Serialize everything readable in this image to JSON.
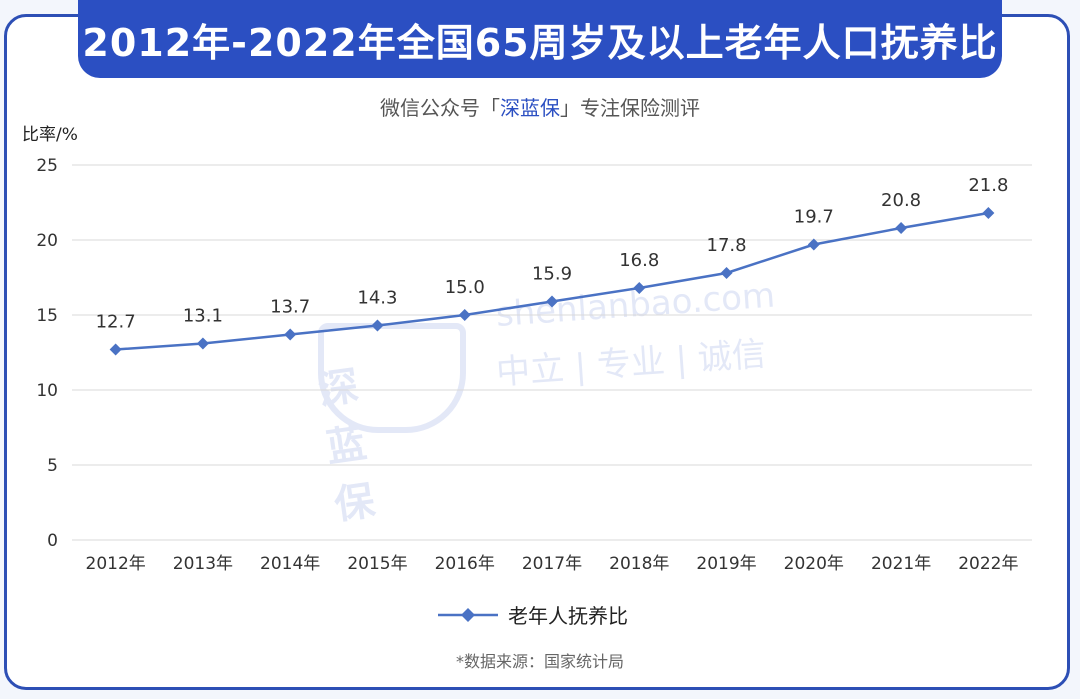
{
  "header": {
    "title": "2012年-2022年全国65周岁及以上老年人口抚养比"
  },
  "subtitle": {
    "prefix": "微信公众号「",
    "brand": "深蓝保",
    "suffix": "」专注保险测评"
  },
  "unit_label": "比率/%",
  "watermark": {
    "logo_text": "深蓝保",
    "site": "shenlanbao.com",
    "tagline": "中立 | 专业 | 诚信"
  },
  "source": "*数据来源：国家统计局",
  "colors": {
    "accent": "#2b4fc2",
    "line": "#4a72c4",
    "grid": "#d9d9d9"
  },
  "chart_data": {
    "type": "line",
    "title": "2012年-2022年全国65周岁及以上老年人口抚养比",
    "ylabel": "比率/%",
    "xlabel": "",
    "categories": [
      "2012年",
      "2013年",
      "2014年",
      "2015年",
      "2016年",
      "2017年",
      "2018年",
      "2019年",
      "2020年",
      "2021年",
      "2022年"
    ],
    "y_ticks": [
      "0",
      "5",
      "10",
      "15",
      "20",
      "25"
    ],
    "ylim": [
      0,
      25
    ],
    "grid": true,
    "legend_position": "bottom",
    "series": [
      {
        "name": "老年人抚养比",
        "values": [
          12.7,
          13.1,
          13.7,
          14.3,
          15.0,
          15.9,
          16.8,
          17.8,
          19.7,
          20.8,
          21.8
        ],
        "labels": [
          "12.7",
          "13.1",
          "13.7",
          "14.3",
          "15.0",
          "15.9",
          "16.8",
          "17.8",
          "19.7",
          "20.8",
          "21.8"
        ],
        "marker": "diamond"
      }
    ]
  }
}
